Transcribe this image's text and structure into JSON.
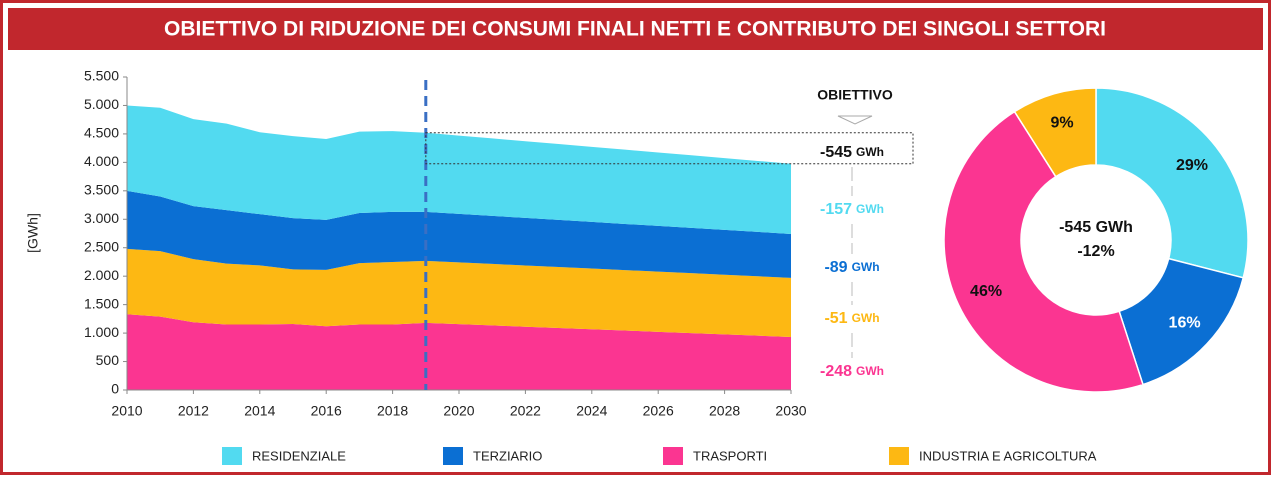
{
  "header": {
    "title": "OBIETTIVO DI RIDUZIONE DEI CONSUMI FINALI NETTI E CONTRIBUTO DEI SINGOLI SETTORI"
  },
  "chart_data": [
    {
      "type": "stacked-area",
      "y_label": "[GWh]",
      "x": [
        2010,
        2011,
        2012,
        2013,
        2014,
        2015,
        2016,
        2017,
        2018,
        2019,
        2020,
        2021,
        2022,
        2023,
        2024,
        2025,
        2026,
        2027,
        2028,
        2029,
        2030
      ],
      "xlim": [
        2010,
        2030
      ],
      "xticks": [
        2010,
        2012,
        2014,
        2016,
        2018,
        2020,
        2022,
        2024,
        2026,
        2028,
        2030
      ],
      "ylim": [
        0,
        5500
      ],
      "yticks": [
        0,
        500,
        {
          "value": 1000,
          "label": "1.000"
        },
        {
          "value": 1500,
          "label": "1.500"
        },
        {
          "value": 2000,
          "label": "2.000"
        },
        {
          "value": 2500,
          "label": "2.500"
        },
        {
          "value": 3000,
          "label": "3.000"
        },
        {
          "value": 3500,
          "label": "3.500"
        },
        {
          "value": 4000,
          "label": "4.000"
        },
        {
          "value": 4500,
          "label": "4.500"
        },
        {
          "value": 5000,
          "label": "5.000"
        },
        {
          "value": 5500,
          "label": "5.500"
        }
      ],
      "series": [
        {
          "name": "RESIDENZIALE",
          "color": "#52daf0",
          "values": [
            1500,
            1560,
            1530,
            1520,
            1440,
            1440,
            1420,
            1430,
            1420,
            1390,
            1376,
            1361,
            1347,
            1333,
            1319,
            1305,
            1290,
            1276,
            1262,
            1247,
            1233
          ]
        },
        {
          "name": "TERZIARIO",
          "color": "#0b6fd3",
          "values": [
            1020,
            960,
            930,
            940,
            900,
            900,
            880,
            880,
            880,
            860,
            852,
            844,
            836,
            828,
            820,
            811,
            803,
            795,
            787,
            779,
            771
          ]
        },
        {
          "name": "TRASPORTI",
          "color": "#fb3591",
          "values": [
            1330,
            1290,
            1190,
            1150,
            1150,
            1160,
            1120,
            1150,
            1150,
            1180,
            1157,
            1135,
            1112,
            1090,
            1067,
            1045,
            1022,
            1000,
            977,
            955,
            932
          ]
        },
        {
          "name": "INDUSTRIA E AGRICOLTURA",
          "color": "#fdb813",
          "values": [
            1150,
            1150,
            1110,
            1070,
            1040,
            960,
            990,
            1080,
            1100,
            1090,
            1085,
            1081,
            1076,
            1072,
            1067,
            1062,
            1058,
            1053,
            1049,
            1044,
            1039
          ]
        }
      ],
      "marker_year": 2019,
      "annotation_title": "OBIETTIVO",
      "annotations": [
        {
          "text": "-545",
          "unit": "GWh",
          "color": "#111111"
        },
        {
          "text": "-157",
          "unit": "GWh",
          "color": "#52daf0"
        },
        {
          "text": "-89",
          "unit": "GWh",
          "color": "#0b6fd3"
        },
        {
          "text": "-51",
          "unit": "GWh",
          "color": "#fdb813"
        },
        {
          "text": "-248",
          "unit": "GWh",
          "color": "#fb3591"
        }
      ]
    },
    {
      "type": "donut",
      "center_lines": [
        "-545 GWh",
        "-12%"
      ],
      "values": [
        29,
        16,
        46,
        9
      ],
      "value_labels": [
        "29%",
        "16%",
        "46%",
        "9%"
      ],
      "colors": [
        "#52daf0",
        "#0b6fd3",
        "#fb3591",
        "#fdb813"
      ],
      "label_colors": [
        "#111111",
        "#ffffff",
        "#111111",
        "#111111"
      ]
    }
  ]
}
